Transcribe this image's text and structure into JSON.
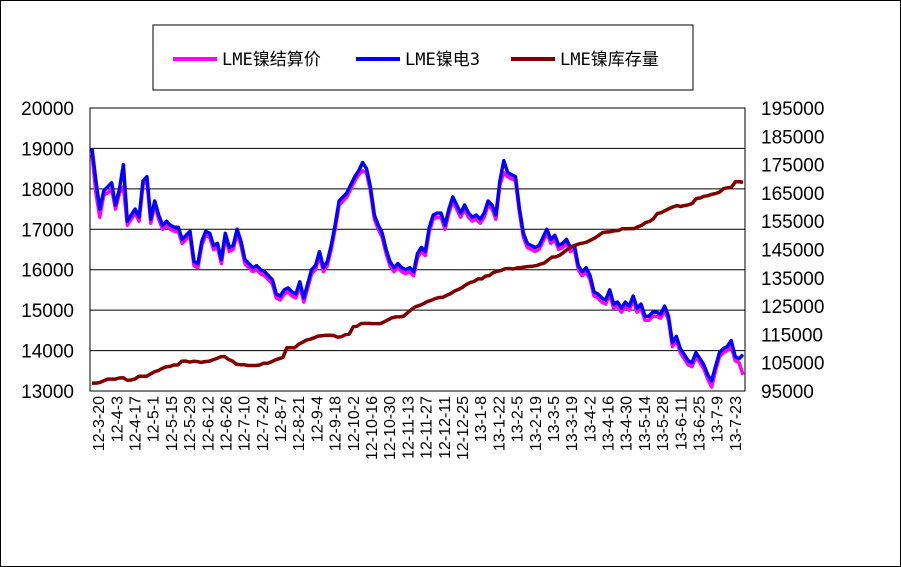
{
  "chart_data": {
    "type": "line",
    "title": "",
    "legend": {
      "placement": "top"
    },
    "y_left": {
      "lim": [
        13000,
        20000
      ],
      "ticks": [
        "13000",
        "14000",
        "15000",
        "16000",
        "17000",
        "18000",
        "19000",
        "20000"
      ]
    },
    "y_right": {
      "lim": [
        95000,
        195000
      ],
      "ticks": [
        "95000",
        "105000",
        "115000",
        "125000",
        "135000",
        "145000",
        "155000",
        "165000",
        "175000",
        "185000",
        "195000"
      ]
    },
    "x_ticks": [
      "12-3-20",
      "12-4-3",
      "12-4-17",
      "12-5-1",
      "12-5-15",
      "12-5-29",
      "12-6-12",
      "12-6-26",
      "12-7-10",
      "12-7-24",
      "12-8-7",
      "12-8-21",
      "12-9-4",
      "12-9-18",
      "12-10-2",
      "12-10-16",
      "12-10-30",
      "12-11-13",
      "12-11-27",
      "12-12-11",
      "12-12-25",
      "13-1-8",
      "13-1-22",
      "13-2-5",
      "13-2-19",
      "13-3-5",
      "13-3-19",
      "13-4-2",
      "13-4-16",
      "13-4-30",
      "13-5-14",
      "13-5-28",
      "13-6-11",
      "13-6-25",
      "13-7-9",
      "13-7-23"
    ],
    "x_grid": false,
    "y_grid": true,
    "series": [
      {
        "name": "LME镍结算价",
        "axis": "left",
        "color": "#ff00ff",
        "values": [
          18850,
          17900,
          17300,
          17850,
          17900,
          18000,
          17500,
          17900,
          18050,
          17100,
          17250,
          17400,
          17200,
          18100,
          18200,
          17150,
          17600,
          17250,
          17000,
          17100,
          17000,
          16950,
          16950,
          16650,
          16750,
          16850,
          16100,
          16050,
          16600,
          16850,
          16800,
          16500,
          16550,
          16150,
          16800,
          16450,
          16500,
          16900,
          16600,
          16150,
          16050,
          15950,
          16000,
          15900,
          15850,
          15750,
          15650,
          15300,
          15250,
          15400,
          15450,
          15350,
          15300,
          15600,
          15200,
          15550,
          15900,
          16000,
          16350,
          15950,
          16100,
          16500,
          17000,
          17600,
          17700,
          17800,
          18000,
          18200,
          18350,
          18450,
          18400,
          17950,
          17250,
          17000,
          16800,
          16400,
          16100,
          15950,
          16050,
          15950,
          15900,
          15950,
          15850,
          16300,
          16450,
          16350,
          16950,
          17250,
          17300,
          17300,
          17000,
          17400,
          17700,
          17500,
          17300,
          17500,
          17300,
          17200,
          17250,
          17150,
          17300,
          17600,
          17500,
          17250,
          18100,
          18400,
          18300,
          18250,
          18200,
          17400,
          16800,
          16550,
          16500,
          16450,
          16500,
          16700,
          16900,
          16650,
          16750,
          16500,
          16550,
          16650,
          16450,
          16500,
          16000,
          15850,
          15950,
          15750,
          15350,
          15300,
          15200,
          15150,
          15400,
          15050,
          15100,
          14950,
          15100,
          15000,
          15250,
          14950,
          15050,
          14750,
          14750,
          14850,
          14850,
          14800,
          15000,
          14750,
          14100,
          14250,
          13950,
          13800,
          13650,
          13600,
          13850,
          13700,
          13550,
          13300,
          13100,
          13500,
          13850,
          13950,
          14000,
          14100,
          13750,
          13700,
          13400
        ]
      },
      {
        "name": "LME镍电3",
        "axis": "left",
        "color": "#0000ff",
        "values": [
          19000,
          18200,
          17500,
          17950,
          18050,
          18150,
          17600,
          18000,
          18600,
          17200,
          17350,
          17500,
          17300,
          18200,
          18300,
          17250,
          17700,
          17350,
          17100,
          17200,
          17100,
          17050,
          17050,
          16750,
          16850,
          16950,
          16200,
          16150,
          16700,
          16950,
          16900,
          16600,
          16650,
          16250,
          16900,
          16550,
          16600,
          17000,
          16700,
          16250,
          16150,
          16050,
          16100,
          16000,
          15950,
          15850,
          15750,
          15400,
          15350,
          15500,
          15550,
          15450,
          15400,
          15700,
          15300,
          15650,
          16000,
          16100,
          16450,
          16050,
          16200,
          16600,
          17100,
          17700,
          17800,
          17900,
          18100,
          18300,
          18450,
          18650,
          18500,
          18050,
          17350,
          17100,
          16900,
          16500,
          16200,
          16050,
          16150,
          16050,
          16000,
          16050,
          15950,
          16400,
          16550,
          16450,
          17050,
          17350,
          17400,
          17400,
          17100,
          17500,
          17800,
          17600,
          17400,
          17600,
          17400,
          17300,
          17350,
          17250,
          17400,
          17700,
          17600,
          17350,
          18200,
          18700,
          18400,
          18350,
          18300,
          17500,
          16900,
          16650,
          16600,
          16550,
          16600,
          16800,
          17000,
          16750,
          16850,
          16600,
          16650,
          16750,
          16550,
          16600,
          16100,
          15950,
          16050,
          15850,
          15450,
          15400,
          15300,
          15250,
          15500,
          15150,
          15200,
          15050,
          15200,
          15100,
          15350,
          15050,
          15150,
          14850,
          14850,
          14950,
          14950,
          14900,
          15100,
          14850,
          14200,
          14350,
          14050,
          13900,
          13750,
          13700,
          13950,
          13800,
          13650,
          13400,
          13250,
          13600,
          13950,
          14050,
          14100,
          14250,
          13850,
          13800,
          13900
        ]
      },
      {
        "name": "LME镍库存量",
        "axis": "right",
        "color": "#800000",
        "values": [
          97800,
          97800,
          98000,
          98600,
          99200,
          99200,
          99200,
          99600,
          99700,
          98800,
          98900,
          99200,
          100200,
          100200,
          100200,
          101000,
          101800,
          102200,
          103000,
          103500,
          103700,
          104200,
          104200,
          105500,
          105600,
          105200,
          105500,
          105400,
          105100,
          105400,
          105500,
          106000,
          106500,
          107100,
          107200,
          106200,
          105600,
          104500,
          104300,
          104300,
          104000,
          104000,
          104000,
          104200,
          104800,
          104800,
          105300,
          106000,
          106400,
          106900,
          110300,
          110300,
          110300,
          111500,
          112200,
          113000,
          113300,
          113800,
          114400,
          114500,
          114700,
          114700,
          114600,
          114000,
          114200,
          114900,
          115100,
          117700,
          117900,
          118800,
          118900,
          118900,
          118800,
          118800,
          118800,
          119500,
          120200,
          120900,
          121200,
          121200,
          121500,
          122700,
          123900,
          124800,
          125200,
          125800,
          126600,
          127000,
          127600,
          128000,
          128100,
          128800,
          129400,
          130300,
          130900,
          131600,
          132600,
          133300,
          133700,
          134600,
          134600,
          135600,
          135800,
          136900,
          137300,
          137600,
          138200,
          138300,
          138100,
          138500,
          138600,
          138800,
          139000,
          139100,
          139300,
          139800,
          140200,
          141300,
          142300,
          142400,
          143000,
          144000,
          145100,
          146000,
          146500,
          147000,
          147300,
          147700,
          148400,
          149100,
          150000,
          151000,
          151200,
          151300,
          151600,
          151700,
          152300,
          152300,
          152400,
          152400,
          153000,
          153500,
          154500,
          154900,
          155800,
          157700,
          158000,
          158700,
          159400,
          160000,
          160500,
          160200,
          160500,
          160800,
          161300,
          163000,
          163200,
          163800,
          164000,
          164500,
          164800,
          165300,
          166500,
          166800,
          166900,
          168900,
          169000,
          168700
        ]
      }
    ]
  }
}
